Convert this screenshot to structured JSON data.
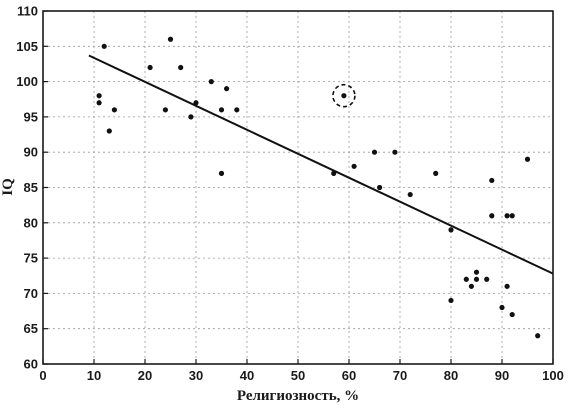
{
  "chart_data": {
    "type": "scatter",
    "title": "",
    "xlabel": "Религиозность, %",
    "ylabel": "IQ",
    "xlim": [
      0,
      100
    ],
    "ylim": [
      60,
      110
    ],
    "xticks": [
      "0",
      "10",
      "20",
      "30",
      "40",
      "50",
      "60",
      "70",
      "80",
      "90",
      "100"
    ],
    "yticks": [
      "60",
      "65",
      "70",
      "75",
      "80",
      "85",
      "90",
      "95",
      "100",
      "105",
      "110"
    ],
    "grid": true,
    "colors": {
      "points": "#111111",
      "line": "#111111",
      "grid": "#9a9a9a"
    },
    "points": [
      {
        "x": 11,
        "y": 98
      },
      {
        "x": 11,
        "y": 97
      },
      {
        "x": 12,
        "y": 105
      },
      {
        "x": 13,
        "y": 93
      },
      {
        "x": 14,
        "y": 96
      },
      {
        "x": 21,
        "y": 102
      },
      {
        "x": 24,
        "y": 96
      },
      {
        "x": 25,
        "y": 106
      },
      {
        "x": 27,
        "y": 102
      },
      {
        "x": 29,
        "y": 95
      },
      {
        "x": 30,
        "y": 97
      },
      {
        "x": 33,
        "y": 100
      },
      {
        "x": 35,
        "y": 96
      },
      {
        "x": 35,
        "y": 87
      },
      {
        "x": 36,
        "y": 99
      },
      {
        "x": 38,
        "y": 96
      },
      {
        "x": 57,
        "y": 87
      },
      {
        "x": 59,
        "y": 98
      },
      {
        "x": 61,
        "y": 88
      },
      {
        "x": 65,
        "y": 90
      },
      {
        "x": 66,
        "y": 85
      },
      {
        "x": 69,
        "y": 90
      },
      {
        "x": 72,
        "y": 84
      },
      {
        "x": 77,
        "y": 87
      },
      {
        "x": 80,
        "y": 79
      },
      {
        "x": 80,
        "y": 69
      },
      {
        "x": 83,
        "y": 72
      },
      {
        "x": 84,
        "y": 71
      },
      {
        "x": 85,
        "y": 73
      },
      {
        "x": 85,
        "y": 72
      },
      {
        "x": 87,
        "y": 72
      },
      {
        "x": 88,
        "y": 86
      },
      {
        "x": 88,
        "y": 81
      },
      {
        "x": 90,
        "y": 68
      },
      {
        "x": 91,
        "y": 81
      },
      {
        "x": 91,
        "y": 71
      },
      {
        "x": 92,
        "y": 81
      },
      {
        "x": 92,
        "y": 67
      },
      {
        "x": 95,
        "y": 89
      },
      {
        "x": 97,
        "y": 64
      }
    ],
    "trendline": [
      {
        "x": 9,
        "y": 103.7
      },
      {
        "x": 100,
        "y": 72.8
      }
    ],
    "highlighted_point": {
      "x": 59,
      "y": 98
    }
  }
}
